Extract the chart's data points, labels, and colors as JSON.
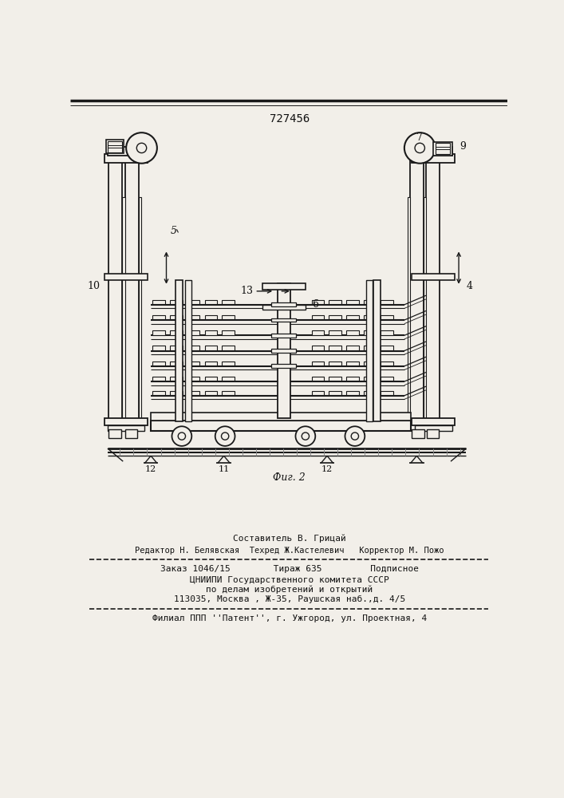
{
  "patent_number": "727456",
  "bg_color": "#f2efe9",
  "line_color": "#1a1a1a",
  "text_color": "#111111",
  "footer_line1": "Составитель В. Грицай",
  "footer_line2": "Редактор Н. Белявская  Техред Ж.Кастелевич   Корректор М. Пожо",
  "footer_line3": "Заказ 1046/15        Тираж 635         Подписное",
  "footer_line4": "ЦНИИПИ Государственного комитета СССР",
  "footer_line5": "по делам изобретений и открытий",
  "footer_line6": "113035, Москва , Ж-35, Раушская наб.,д. 4/5",
  "footer_line7": "Филиал ППП ''Патент'', г. Ужгород, ул. Проектная, 4"
}
